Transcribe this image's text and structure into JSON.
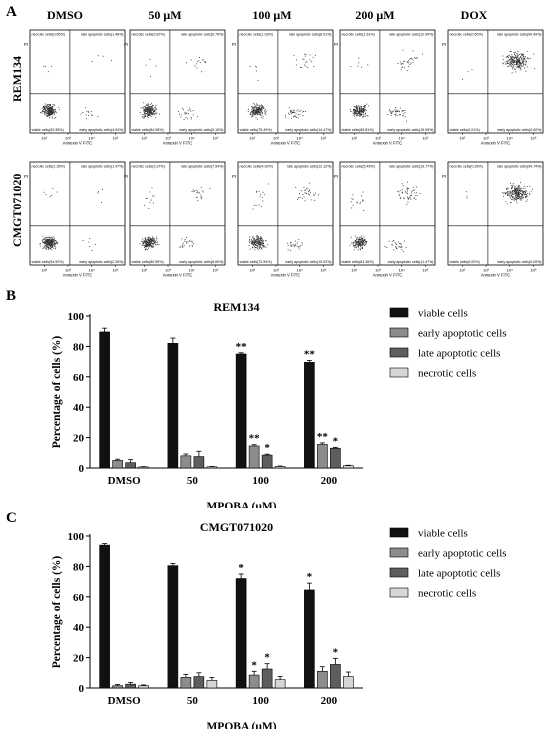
{
  "panel_a": {
    "letter": "A",
    "columns": [
      "DMSO",
      "50 μM",
      "100 μM",
      "200 μM",
      "DOX"
    ],
    "rows": [
      {
        "name": "REM134",
        "plots": [
          {
            "nec": "necrotic cells(0.65%)",
            "late": "late apoptotic cells(1.46%)",
            "via": "viable cells(92.95%)",
            "early": "early apoptotic cells(4.94%)"
          },
          {
            "nec": "necrotic cells(0.87%)",
            "late": "late apoptotic cells(5.79%)",
            "via": "viable cells(84.08%)",
            "early": "early apoptotic cells(9.15%)"
          },
          {
            "nec": "necrotic cells(1.03%)",
            "late": "late apoptotic cells(8.01%)",
            "via": "viable cells(75.49%)",
            "early": "early apoptotic cells(14.47%)"
          },
          {
            "nec": "necrotic cells(1.61%)",
            "late": "late apoptotic cells(12.99%)",
            "via": "viable cells(69.81%)",
            "early": "early apoptotic cells(15.59%)"
          },
          {
            "nec": "necrotic cells(0.50%)",
            "late": "late apoptotic cells(99.49%)",
            "via": "viable cells(0.01%)",
            "early": "early apoptotic cells(0.00%)"
          }
        ]
      },
      {
        "name": "CMGT071020",
        "plots": [
          {
            "nec": "necrotic cells(1.35%)",
            "late": "late apoptotic cells(1.47%)",
            "via": "viable cells(94.92%)",
            "early": "early apoptotic cells(2.26%)"
          },
          {
            "nec": "necrotic cells(3.37%)",
            "late": "late apoptotic cells(7.54%)",
            "via": "viable cells(80.59%)",
            "early": "early apoptotic cells(8.60%)"
          },
          {
            "nec": "necrotic cells(4.92%)",
            "late": "late apoptotic cells(12.12%)",
            "via": "viable cells(72.94%)",
            "early": "early apoptotic cells(10.02%)"
          },
          {
            "nec": "necrotic cells(5.45%)",
            "late": "late apoptotic cells(19.77%)",
            "via": "viable cells(63.36%)",
            "early": "early apoptotic cells(11.47%)"
          },
          {
            "nec": "necrotic cells(0.26%)",
            "late": "late apoptotic cells(99.74%)",
            "via": "viable cells(0.00%)",
            "early": "early apoptotic cells(0.00%)"
          }
        ]
      }
    ],
    "x_axis": "Annexin V FITC",
    "y_axis": "PI",
    "x_ticks": [
      "10²",
      "10³",
      "10⁴",
      "10⁵"
    ]
  },
  "chart_data": [
    {
      "type": "bar",
      "panel": "B",
      "title": "REM134",
      "xlabel": "MPOBA (μM)",
      "ylabel": "Percentage of cells (%)",
      "categories": [
        "DMSO",
        "50",
        "100",
        "200"
      ],
      "ylim": [
        0,
        100
      ],
      "yticks": [
        0,
        20,
        40,
        60,
        80,
        100
      ],
      "legend_position": "top-right",
      "series": [
        {
          "name": "viable cells",
          "color": "#111111",
          "values": [
            89.5,
            82,
            75,
            69.5
          ],
          "errors": [
            2.5,
            3.5,
            0.8,
            1.2
          ],
          "marks": [
            "",
            "",
            "**",
            "**"
          ]
        },
        {
          "name": "early apoptotic cells",
          "color": "#8c8c8c",
          "values": [
            5,
            8,
            14.5,
            15.5
          ],
          "errors": [
            0.8,
            1.2,
            0.8,
            1.0
          ],
          "marks": [
            "",
            "",
            "**",
            "**"
          ]
        },
        {
          "name": "late apoptotic cells",
          "color": "#5e5e5e",
          "values": [
            3.5,
            7.5,
            8.5,
            13
          ],
          "errors": [
            2,
            3.5,
            0.6,
            0.6
          ],
          "marks": [
            "",
            "",
            "*",
            "*"
          ]
        },
        {
          "name": "necrotic cells",
          "color": "#d6d6d6",
          "values": [
            0.7,
            0.8,
            1.0,
            1.5
          ],
          "errors": [
            0.2,
            0.2,
            0.3,
            0.3
          ],
          "marks": [
            "",
            "",
            "",
            ""
          ]
        }
      ]
    },
    {
      "type": "bar",
      "panel": "C",
      "title": "CMGT071020",
      "xlabel": "MPOBA (μM)",
      "ylabel": "Percentage of cells (%)",
      "categories": [
        "DMSO",
        "50",
        "100",
        "200"
      ],
      "ylim": [
        0,
        100
      ],
      "yticks": [
        0,
        20,
        40,
        60,
        80,
        100
      ],
      "legend_position": "top-right",
      "series": [
        {
          "name": "viable cells",
          "color": "#111111",
          "values": [
            94,
            80.5,
            72,
            64.5
          ],
          "errors": [
            1.0,
            1.5,
            3.0,
            4.5
          ],
          "marks": [
            "",
            "",
            "*",
            "*"
          ]
        },
        {
          "name": "early apoptotic cells",
          "color": "#8c8c8c",
          "values": [
            1.5,
            7,
            8.5,
            11
          ],
          "errors": [
            0.8,
            2,
            2.5,
            3
          ],
          "marks": [
            "",
            "",
            "*",
            ""
          ]
        },
        {
          "name": "late apoptotic cells",
          "color": "#5e5e5e",
          "values": [
            2.5,
            7.5,
            12.5,
            15.5
          ],
          "errors": [
            1.2,
            2.5,
            3.5,
            4
          ],
          "marks": [
            "",
            "",
            "*",
            "*"
          ]
        },
        {
          "name": "necrotic cells",
          "color": "#d6d6d6",
          "values": [
            1.5,
            5,
            5.5,
            7.5
          ],
          "errors": [
            0.5,
            2,
            2,
            3
          ],
          "marks": [
            "",
            "",
            "",
            ""
          ]
        }
      ]
    }
  ]
}
